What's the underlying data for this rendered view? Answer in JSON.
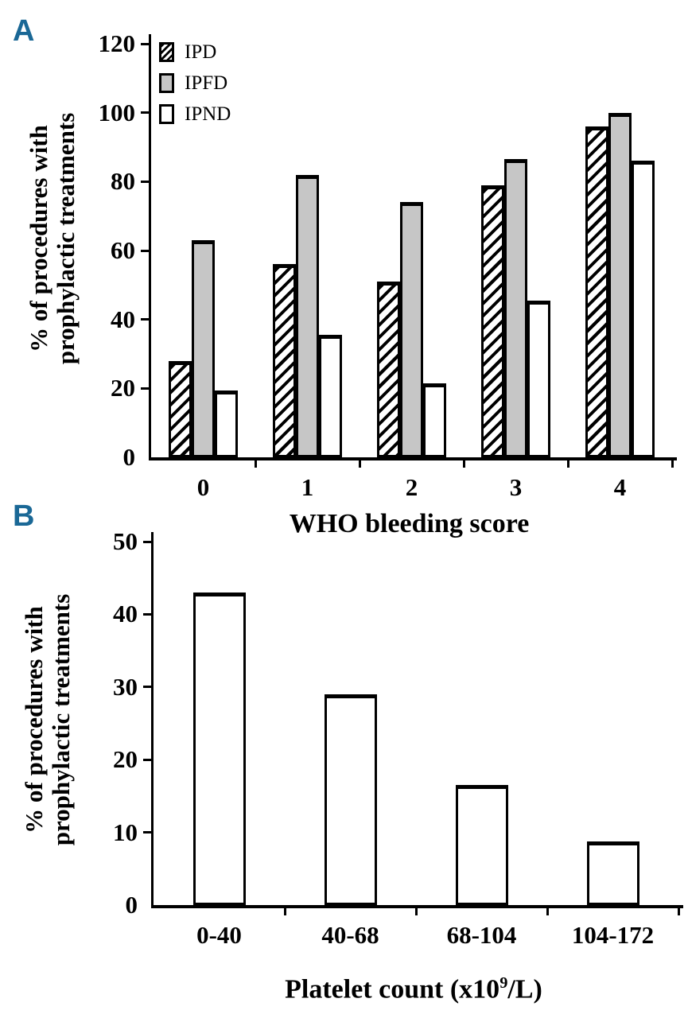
{
  "figure": {
    "background": "#ffffff",
    "accent_color": "#1a6896",
    "bar_gray": "#c6c6c6",
    "axis_color": "#000000"
  },
  "panels": [
    {
      "letter": "A"
    },
    {
      "letter": "B"
    }
  ],
  "chart_data": [
    {
      "panel": "A",
      "type": "bar",
      "title": "",
      "categories": [
        "0",
        "1",
        "2",
        "3",
        "4"
      ],
      "series": [
        {
          "name": "IPD",
          "fill": "hatch",
          "values": [
            28,
            56,
            51,
            79,
            96
          ]
        },
        {
          "name": "IPFD",
          "fill": "#c6c6c6",
          "values": [
            63,
            82,
            74,
            86.5,
            100
          ]
        },
        {
          "name": "IPND",
          "fill": "#ffffff",
          "values": [
            19.5,
            35.5,
            21.5,
            45.5,
            86
          ]
        }
      ],
      "xlabel": "WHO bleeding score",
      "ylabel": "% of procedures with prophylactic treatments",
      "ylabel_lines": [
        "% of procedures with",
        "prophylactic treatments"
      ],
      "ylim": [
        0,
        120
      ],
      "yticks": [
        0,
        20,
        40,
        60,
        80,
        100,
        120
      ],
      "legend_position": "top-left",
      "grid": false
    },
    {
      "panel": "B",
      "type": "bar",
      "title": "",
      "categories": [
        "0-40",
        "40-68",
        "68-104",
        "104-172"
      ],
      "series": [
        {
          "name": "",
          "fill": "#ffffff",
          "values": [
            43,
            29,
            16.5,
            8.7
          ]
        }
      ],
      "xlabel": "Platelet count (x10⁹/L)",
      "xlabel_parts": {
        "pre": "Platelet count (x10",
        "sup": "9",
        "post": "/L)"
      },
      "ylabel": "% of procedures with prophylactic treatments",
      "ylabel_lines": [
        "% of procedures with",
        "prophylactic treatments"
      ],
      "ylim": [
        0,
        50
      ],
      "yticks": [
        0,
        10,
        20,
        30,
        40,
        50
      ],
      "grid": false
    }
  ]
}
